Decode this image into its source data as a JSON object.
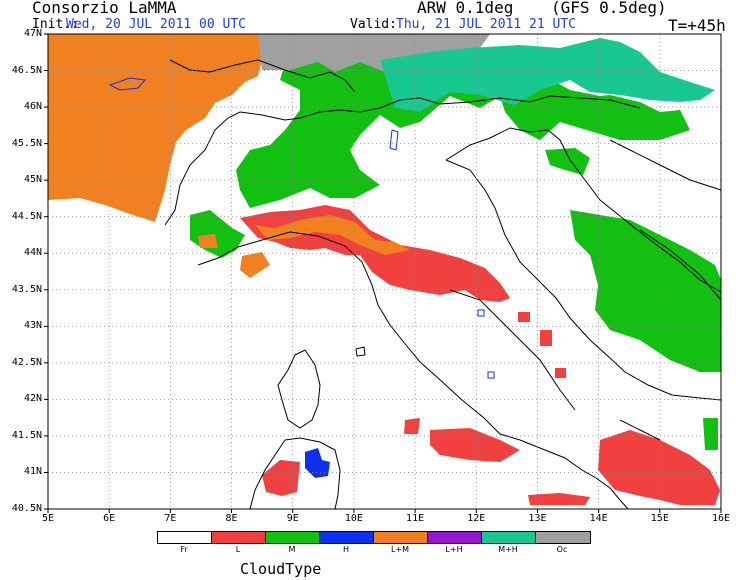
{
  "header": {
    "title": "Consorzio LaMMA",
    "model": "ARW 0.1deg",
    "gfs": "(GFS 0.5deg)",
    "init_label": "Init.:",
    "init_value": "Wed, 20 JUL 2011  00 UTC",
    "valid_label": "Valid:",
    "valid_value": "Thu, 21 JUL 2011  21 UTC",
    "forecast_step": "T=+45h"
  },
  "map": {
    "lat_labels": [
      "47N",
      "46.5N",
      "46N",
      "45.5N",
      "45N",
      "44.5N",
      "44N",
      "43.5N",
      "43N",
      "42.5N",
      "42N",
      "41.5N",
      "41N",
      "40.5N"
    ],
    "lon_labels": [
      "5E",
      "6E",
      "7E",
      "8E",
      "9E",
      "10E",
      "11E",
      "12E",
      "13E",
      "14E",
      "15E",
      "16E"
    ],
    "lat_range": [
      40.5,
      47
    ],
    "lon_range": [
      5,
      16
    ],
    "grid": "dotted"
  },
  "legend": {
    "title": "CloudType",
    "classes": [
      {
        "label": "Fr",
        "color": "#ffffff"
      },
      {
        "label": "L",
        "color": "#f04040"
      },
      {
        "label": "M",
        "color": "#12c012"
      },
      {
        "label": "H",
        "color": "#1030f0"
      },
      {
        "label": "L+M",
        "color": "#f08020"
      },
      {
        "label": "L+H",
        "color": "#9018c8"
      },
      {
        "label": "M+H",
        "color": "#18c890"
      },
      {
        "label": "Oc",
        "color": "#a0a0a0"
      }
    ]
  }
}
